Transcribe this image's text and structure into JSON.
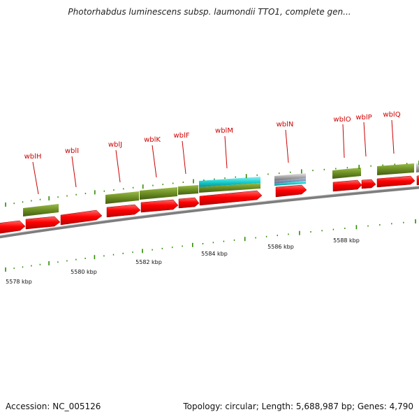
{
  "title": "Photorhabdus luminescens subsp. laumondii TTO1, complete gen...",
  "footer": {
    "accession": "Accession: NC_005126",
    "summary": "Topology: circular; Length: 5,688,987 bp; Genes: 4,790"
  },
  "colors": {
    "cds": "#ff0000",
    "gene": "#6b8e23",
    "tick": "#2e8b00",
    "label": "#cc0000",
    "backbone": "#8a8a8a",
    "cyan": "#19d1d1",
    "grey": "#b0b0b0"
  },
  "scale_labels": [
    "5578 kbp",
    "5580 kbp",
    "5582 kbp",
    "5584 kbp",
    "5586 kbp",
    "5588 kbp"
  ],
  "gene_labels": [
    "wblH",
    "wblI",
    "wblJ",
    "wblK",
    "wblF",
    "wblM",
    "wblN",
    "wblO",
    "wblP",
    "wblQ"
  ]
}
